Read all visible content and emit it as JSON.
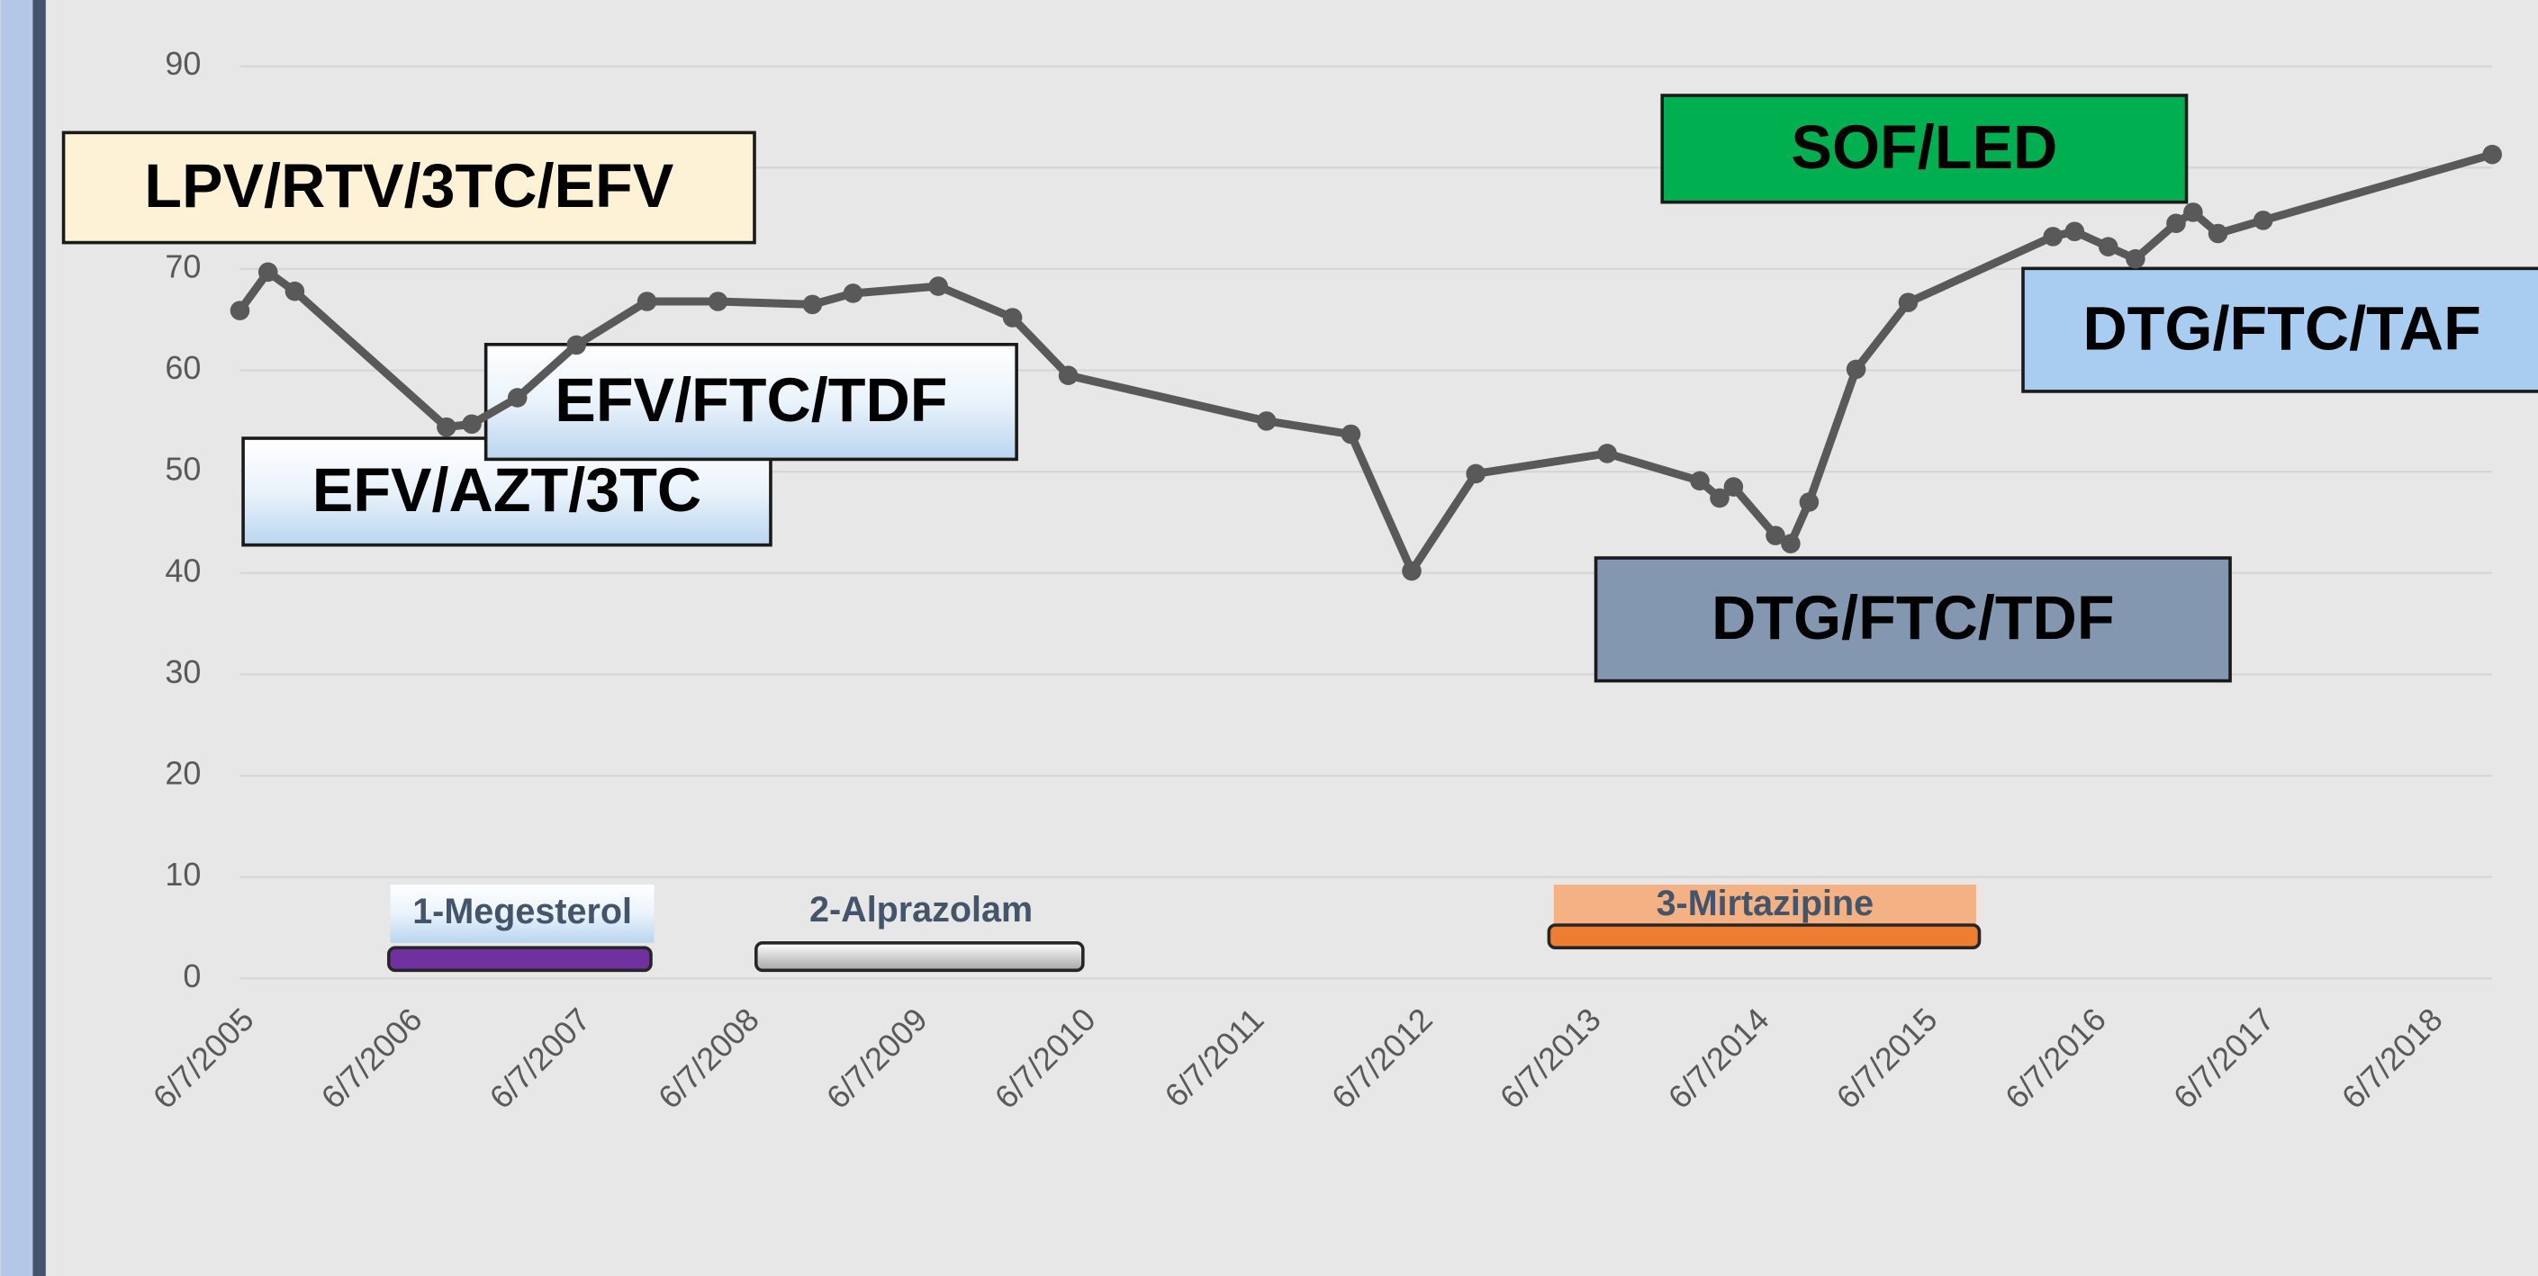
{
  "chart_data": {
    "type": "line",
    "x": [
      "6/7/2005",
      "8/7/2005",
      "10/4/2005",
      "8/29/2006",
      "10/23/2006",
      "1/30/2007",
      "6/7/2007",
      "11/7/2007",
      "4/9/2008",
      "10/31/2008",
      "1/27/2009",
      "7/31/2009",
      "1/8/2010",
      "5/9/2010",
      "7/13/2011",
      "1/12/2012",
      "5/23/2012",
      "10/9/2012",
      "7/21/2013",
      "2/7/2014",
      "3/22/2014",
      "4/21/2014",
      "7/21/2014",
      "8/23/2014",
      "10/2/2014",
      "1/12/2015",
      "5/5/2015",
      "3/14/2016",
      "4/30/2016",
      "7/12/2016",
      "9/9/2016",
      "12/6/2016",
      "1/12/2017",
      "3/7/2017",
      "6/13/2017",
      "10/23/2018"
    ],
    "series": [
      {
        "color": "#595959",
        "values": [
          65.9,
          69.7,
          67.8,
          54.4,
          54.7,
          57.3,
          62.5,
          66.8,
          66.8,
          66.5,
          67.6,
          68.3,
          65.2,
          59.5,
          55.0,
          53.7,
          40.2,
          49.8,
          51.8,
          49.1,
          47.4,
          48.5,
          43.7,
          42.9,
          47.0,
          60.1,
          66.7,
          73.2,
          73.7,
          72.2,
          71.0,
          74.5,
          75.6,
          73.5,
          74.8,
          81.3
        ]
      }
    ],
    "xlim": [
      "6/7/2005",
      "10/23/2018"
    ],
    "xticks": [
      "6/7/2005",
      "6/7/2006",
      "6/7/2007",
      "6/7/2008",
      "6/7/2009",
      "6/7/2010",
      "6/7/2011",
      "6/7/2012",
      "6/7/2013",
      "6/7/2014",
      "6/7/2015",
      "6/7/2016",
      "6/7/2017",
      "6/7/2018"
    ],
    "ylim": [
      0,
      90
    ],
    "yticks": [
      0,
      10,
      20,
      30,
      40,
      50,
      60,
      70,
      80,
      90
    ],
    "grid": true,
    "annotations": [
      {
        "text": "LPV/RTV/3TC/EFV",
        "color": "#fdf2d6"
      },
      {
        "text": "EFV/AZT/3TC",
        "color": "#c9dff3"
      },
      {
        "text": "EFV/FTC/TDF",
        "color": "#c9dff3"
      },
      {
        "text": "SOF/LED",
        "color": "#00b050"
      },
      {
        "text": "DTG/FTC/TDF",
        "color": "#8497b0"
      },
      {
        "text": "DTG/FTC/TAF",
        "color": "#a9cdf0"
      }
    ],
    "medications": [
      {
        "label": "1-Megesterol",
        "color": "#7030a0"
      },
      {
        "label": "2-Alprazolam",
        "color": "#e8e8e8"
      },
      {
        "label": "3-Mirtazipine",
        "color": "#ed7d31"
      }
    ]
  }
}
